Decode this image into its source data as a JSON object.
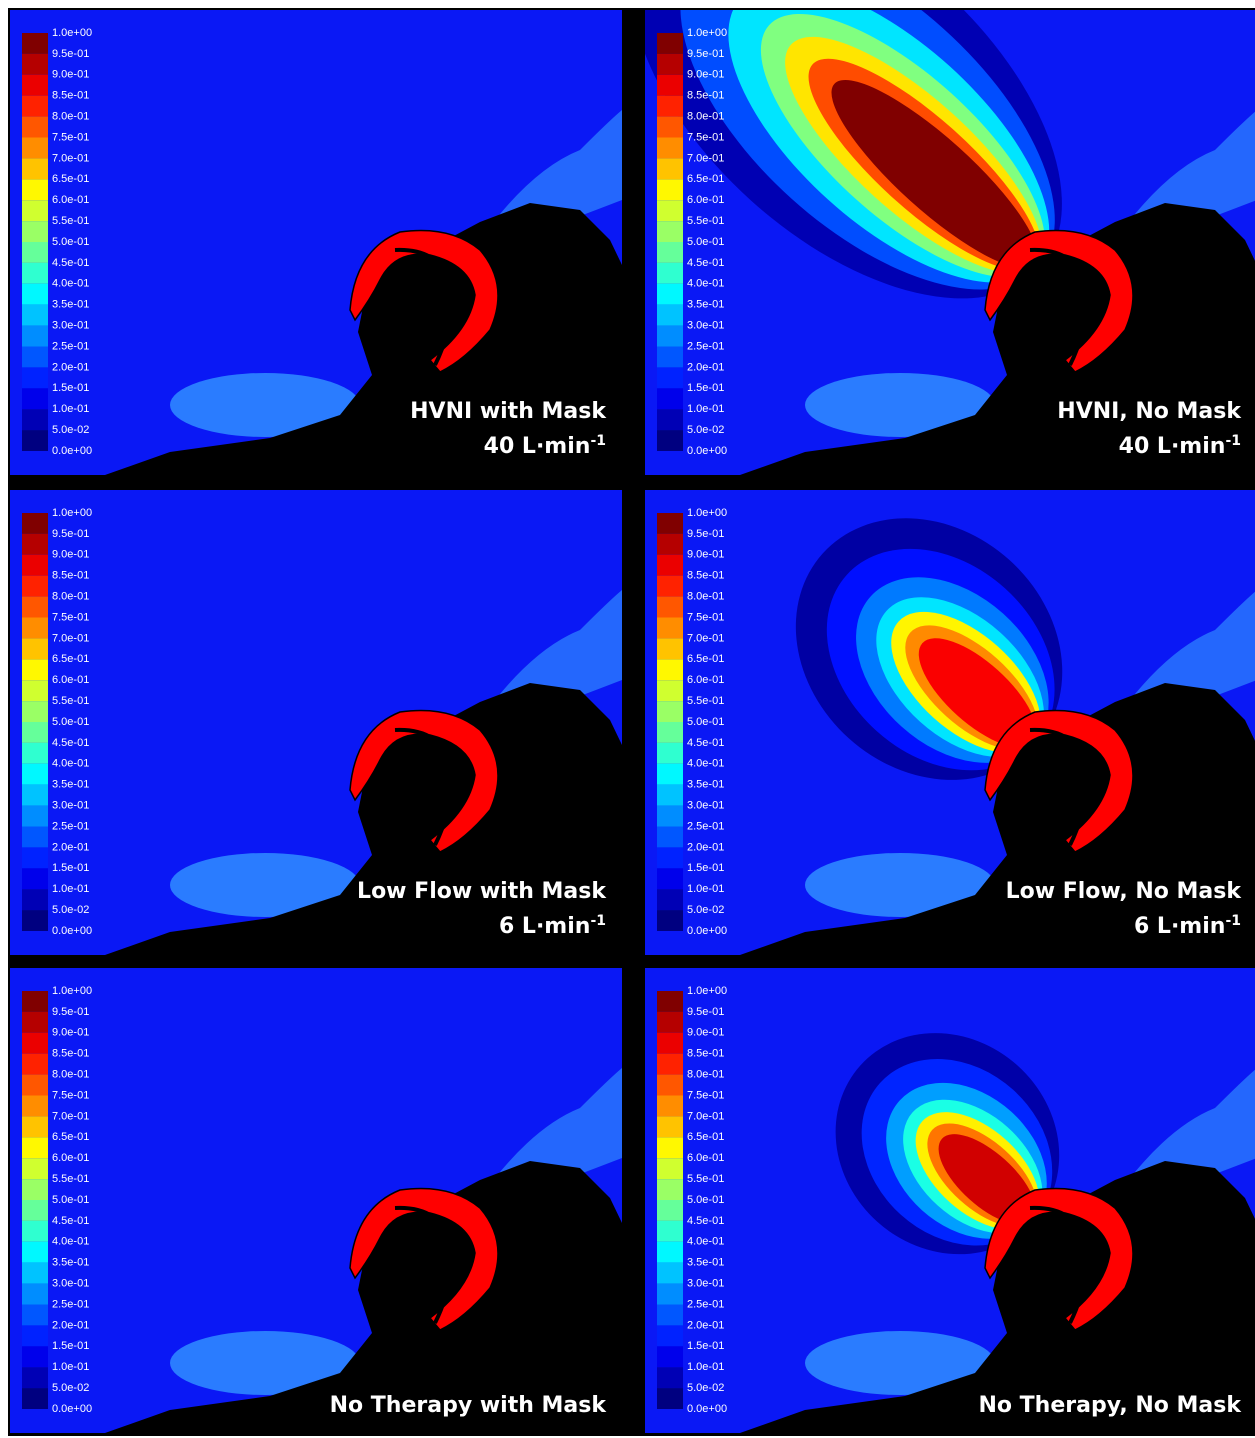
{
  "colorbar": {
    "labels": [
      "1.0e+00",
      "9.5e-01",
      "9.0e-01",
      "8.5e-01",
      "8.0e-01",
      "7.5e-01",
      "7.0e-01",
      "6.5e-01",
      "6.0e-01",
      "5.5e-01",
      "5.0e-01",
      "4.5e-01",
      "4.0e-01",
      "3.5e-01",
      "3.0e-01",
      "2.5e-01",
      "2.0e-01",
      "1.5e-01",
      "1.0e-01",
      "5.0e-02",
      "0.0e+00"
    ]
  },
  "panels": [
    {
      "title": "HVNI with Mask",
      "flow": "40 L·min",
      "flow_sup": "-1"
    },
    {
      "title": "HVNI, No Mask",
      "flow": "40 L·min",
      "flow_sup": "-1"
    },
    {
      "title": "Low Flow with Mask",
      "flow": "6 L·min",
      "flow_sup": "-1"
    },
    {
      "title": "Low Flow, No Mask",
      "flow": "6 L·min",
      "flow_sup": "-1"
    },
    {
      "title": "No Therapy with Mask"
    },
    {
      "title": "No Therapy, No Mask"
    }
  ]
}
